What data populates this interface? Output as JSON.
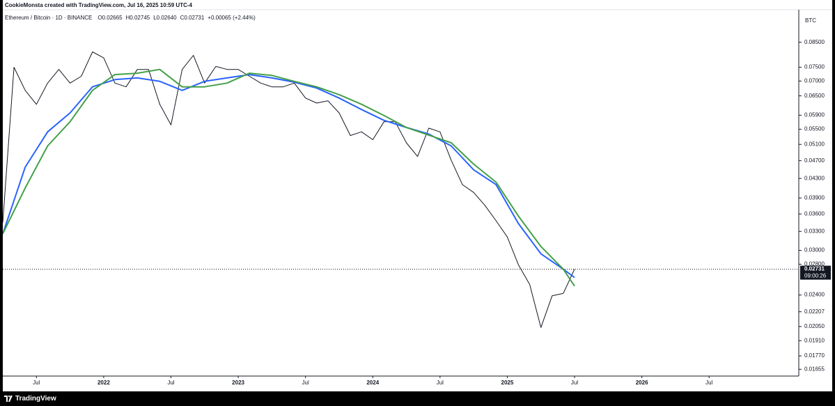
{
  "chart_data": {
    "type": "line",
    "header": "CookieMonsta created with TradingView.com, Jul 16, 2025 10:59 UTC-4",
    "symbol": "Ethereum / Bitcoin · 1D · BINANCE",
    "ohlc": [
      "O0.02665",
      "H0.02745",
      "L0.02640",
      "C0.02731",
      "+0.00065 (+2.44%)"
    ],
    "unit": "BTC",
    "last_price": 0.02731,
    "countdown": "09:00:26",
    "brand": "TradingView",
    "log_y": true,
    "ylim": [
      0.016,
      0.1
    ],
    "yticks": [
      {
        "value": 0.085,
        "label": "0.08500"
      },
      {
        "value": 0.075,
        "label": "0.07500"
      },
      {
        "value": 0.07,
        "label": "0.07000"
      },
      {
        "value": 0.065,
        "label": "0.06500"
      },
      {
        "value": 0.059,
        "label": "0.05900"
      },
      {
        "value": 0.055,
        "label": "0.05500"
      },
      {
        "value": 0.051,
        "label": "0.05100"
      },
      {
        "value": 0.047,
        "label": "0.04700"
      },
      {
        "value": 0.043,
        "label": "0.04300"
      },
      {
        "value": 0.039,
        "label": "0.03900"
      },
      {
        "value": 0.036,
        "label": "0.03600"
      },
      {
        "value": 0.033,
        "label": "0.03300"
      },
      {
        "value": 0.03,
        "label": "0.03000"
      },
      {
        "value": 0.028,
        "label": "0.02800"
      },
      {
        "value": 0.024,
        "label": "0.02400"
      },
      {
        "value": 0.02207,
        "label": "0.02207"
      },
      {
        "value": 0.0205,
        "label": "0.02050"
      },
      {
        "value": 0.0191,
        "label": "0.01910"
      },
      {
        "value": 0.0177,
        "label": "0.01770"
      },
      {
        "value": 0.01655,
        "label": "0.01655"
      }
    ],
    "xlim": [
      "2021-04",
      "2027-03"
    ],
    "xticks": [
      {
        "value": "2021-07",
        "label": "Jul"
      },
      {
        "value": "2022-01",
        "label": "2022"
      },
      {
        "value": "2022-07",
        "label": "Jul"
      },
      {
        "value": "2023-01",
        "label": "2023"
      },
      {
        "value": "2023-07",
        "label": "Jul"
      },
      {
        "value": "2024-01",
        "label": "2024"
      },
      {
        "value": "2024-07",
        "label": "Jul"
      },
      {
        "value": "2025-01",
        "label": "2025"
      },
      {
        "value": "2025-07",
        "label": "Jul"
      },
      {
        "value": "2026-01",
        "label": "2026"
      },
      {
        "value": "2026-07",
        "label": "Jul"
      }
    ],
    "series": [
      {
        "color": "#131722",
        "x": [
          "2021-04",
          "2021-05",
          "2021-06",
          "2021-07",
          "2021-08",
          "2021-09",
          "2021-10",
          "2021-11",
          "2021-12",
          "2022-01",
          "2022-02",
          "2022-03",
          "2022-04",
          "2022-05",
          "2022-06",
          "2022-07",
          "2022-08",
          "2022-09",
          "2022-10",
          "2022-11",
          "2022-12",
          "2023-01",
          "2023-02",
          "2023-03",
          "2023-04",
          "2023-05",
          "2023-06",
          "2023-07",
          "2023-08",
          "2023-09",
          "2023-10",
          "2023-11",
          "2023-12",
          "2024-01",
          "2024-02",
          "2024-03",
          "2024-04",
          "2024-05",
          "2024-06",
          "2024-07",
          "2024-08",
          "2024-09",
          "2024-10",
          "2024-11",
          "2024-12",
          "2025-01",
          "2025-02",
          "2025-03",
          "2025-04",
          "2025-05",
          "2025-06",
          "2025-07"
        ],
        "values": [
          0.0345,
          0.075,
          0.0668,
          0.0623,
          0.0693,
          0.0742,
          0.0693,
          0.0717,
          0.081,
          0.0786,
          0.0693,
          0.068,
          0.0742,
          0.0742,
          0.0623,
          0.0562,
          0.0742,
          0.0796,
          0.0693,
          0.0753,
          0.0742,
          0.0742,
          0.0717,
          0.0693,
          0.068,
          0.068,
          0.0693,
          0.0643,
          0.0627,
          0.0634,
          0.0597,
          0.0533,
          0.0543,
          0.0522,
          0.0571,
          0.0571,
          0.0514,
          0.048,
          0.0553,
          0.0543,
          0.0471,
          0.0417,
          0.0401,
          0.0376,
          0.0348,
          0.0321,
          0.0279,
          0.0253,
          0.0204,
          0.0239,
          0.0242,
          0.02731
        ]
      },
      {
        "color": "#2962ff",
        "x": [
          "2021-04",
          "2021-06",
          "2021-08",
          "2021-10",
          "2021-12",
          "2022-02",
          "2022-04",
          "2022-06",
          "2022-08",
          "2022-10",
          "2022-12",
          "2023-02",
          "2023-04",
          "2023-06",
          "2023-08",
          "2023-10",
          "2023-12",
          "2024-02",
          "2024-04",
          "2024-06",
          "2024-08",
          "2024-10",
          "2024-12",
          "2025-02",
          "2025-04",
          "2025-06",
          "2025-07"
        ],
        "values": [
          0.0326,
          0.0455,
          0.0543,
          0.0597,
          0.068,
          0.0705,
          0.0711,
          0.0699,
          0.0668,
          0.0699,
          0.0711,
          0.0723,
          0.0711,
          0.0696,
          0.0676,
          0.0643,
          0.0607,
          0.0575,
          0.0555,
          0.0537,
          0.0506,
          0.0449,
          0.0417,
          0.0343,
          0.0295,
          0.0273,
          0.0262
        ]
      },
      {
        "color": "#43a047",
        "x": [
          "2021-04",
          "2021-06",
          "2021-08",
          "2021-10",
          "2021-12",
          "2022-02",
          "2022-04",
          "2022-06",
          "2022-08",
          "2022-10",
          "2022-12",
          "2023-02",
          "2023-04",
          "2023-06",
          "2023-08",
          "2023-10",
          "2023-12",
          "2024-02",
          "2024-04",
          "2024-06",
          "2024-08",
          "2024-10",
          "2024-12",
          "2025-02",
          "2025-04",
          "2025-06",
          "2025-07"
        ],
        "values": [
          0.0326,
          0.041,
          0.0506,
          0.0571,
          0.0668,
          0.0723,
          0.0728,
          0.0742,
          0.068,
          0.068,
          0.0693,
          0.0728,
          0.072,
          0.0699,
          0.068,
          0.0654,
          0.0623,
          0.0589,
          0.0555,
          0.0534,
          0.0514,
          0.0462,
          0.0422,
          0.0356,
          0.0306,
          0.0273,
          0.0251
        ]
      }
    ]
  }
}
